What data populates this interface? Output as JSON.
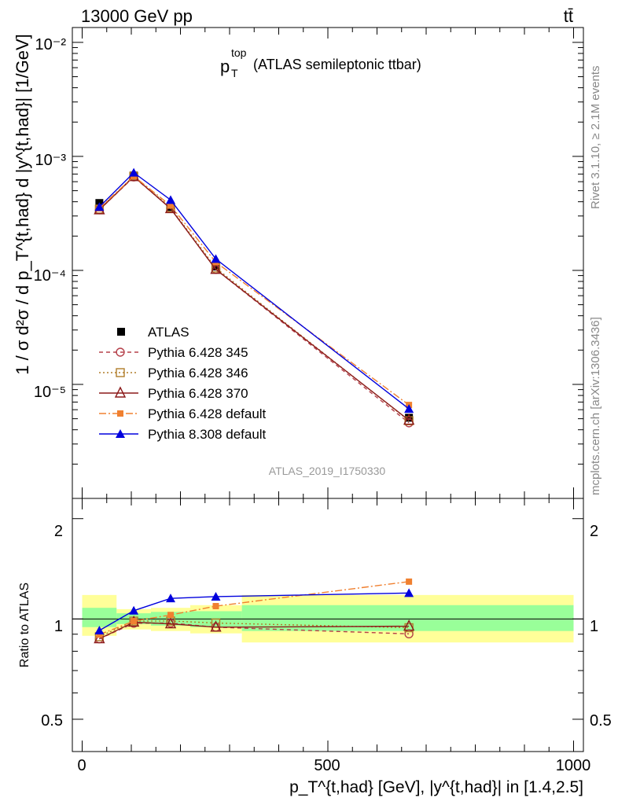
{
  "header": {
    "energy_label": "13000 GeV pp",
    "process_label": "tt̄"
  },
  "side_text": {
    "rivet": "Rivet 3.1.10, ≥ 2.1M events",
    "mcplots": "mcplots.cern.ch [arXiv:1306.3436]"
  },
  "chart_data": {
    "type": "line",
    "title_main": "p",
    "title_sup": "top",
    "title_sub": "T",
    "title_rest": "(ATLAS semileptonic ttbar)",
    "analysis_label": "ATLAS_2019_I1750330",
    "ylabel_upper": "1 / σ d²σ / d p_T^{t,had} d |y^{t,had}| [1/GeV]",
    "ylabel_lower": "Ratio to ATLAS",
    "xlabel": "p_T^{t,had} [GeV], |y^{t,had}| in [1.4,2.5]",
    "x_ticks": [
      "0",
      "500",
      "1000"
    ],
    "y_ticks_upper": [
      "10⁻⁵",
      "10⁻⁴",
      "10⁻³",
      "10⁻²"
    ],
    "y_ticks_lower": [
      "0.5",
      "1",
      "2"
    ],
    "xlim": [
      -20,
      1020
    ],
    "ylim_upper": [
      1e-06,
      0.0135
    ],
    "yscale_upper": "log",
    "ylim_lower": [
      0.4,
      2.3
    ],
    "yscale_lower": "log",
    "legend_position": "lower-left",
    "bins": [
      {
        "lo": 0,
        "hi": 70,
        "center": 35
      },
      {
        "lo": 70,
        "hi": 140,
        "center": 105
      },
      {
        "lo": 140,
        "hi": 220,
        "center": 180
      },
      {
        "lo": 220,
        "hi": 325,
        "center": 272
      },
      {
        "lo": 325,
        "hi": 1000,
        "center": 665
      }
    ],
    "reference": {
      "name": "ATLAS",
      "values": [
        0.00039,
        0.00068,
        0.00036,
        0.000108,
        5.1e-06
      ],
      "band_inner": [
        [
          0.945,
          1.08
        ],
        [
          0.965,
          1.04
        ],
        [
          0.955,
          1.05
        ],
        [
          0.945,
          1.055
        ],
        [
          0.92,
          1.1
        ]
      ],
      "band_outer": [
        [
          0.89,
          1.18
        ],
        [
          0.93,
          1.07
        ],
        [
          0.92,
          1.08
        ],
        [
          0.905,
          1.1
        ],
        [
          0.85,
          1.18
        ]
      ],
      "inner_color": "#99ff99",
      "outer_color": "#ffff99"
    },
    "series": [
      {
        "name": "Pythia 6.428 345",
        "color": "#b5404a",
        "dash": "5,4",
        "marker": "open-circle",
        "values": [
          0.00034,
          0.00066,
          0.00035,
          0.000102,
          4.6e-06
        ]
      },
      {
        "name": "Pythia 6.428 346",
        "color": "#b07d2a",
        "dash": "2,3",
        "marker": "open-square",
        "values": [
          0.000345,
          0.00067,
          0.000355,
          0.000105,
          4.8e-06
        ]
      },
      {
        "name": "Pythia 6.428 370",
        "color": "#8b1a1a",
        "dash": "",
        "marker": "open-triangle",
        "values": [
          0.00034,
          0.000665,
          0.000348,
          0.000102,
          4.85e-06
        ]
      },
      {
        "name": "Pythia 6.428 default",
        "color": "#f08030",
        "dash": "9,3,2,3",
        "marker": "filled-square",
        "values": [
          0.00035,
          0.00067,
          0.00037,
          0.000118,
          6.6e-06
        ]
      },
      {
        "name": "Pythia 8.308 default",
        "color": "#0000dd",
        "dash": "",
        "marker": "filled-triangle",
        "values": [
          0.00036,
          0.00072,
          0.000415,
          0.000126,
          6.1e-06
        ]
      }
    ]
  }
}
